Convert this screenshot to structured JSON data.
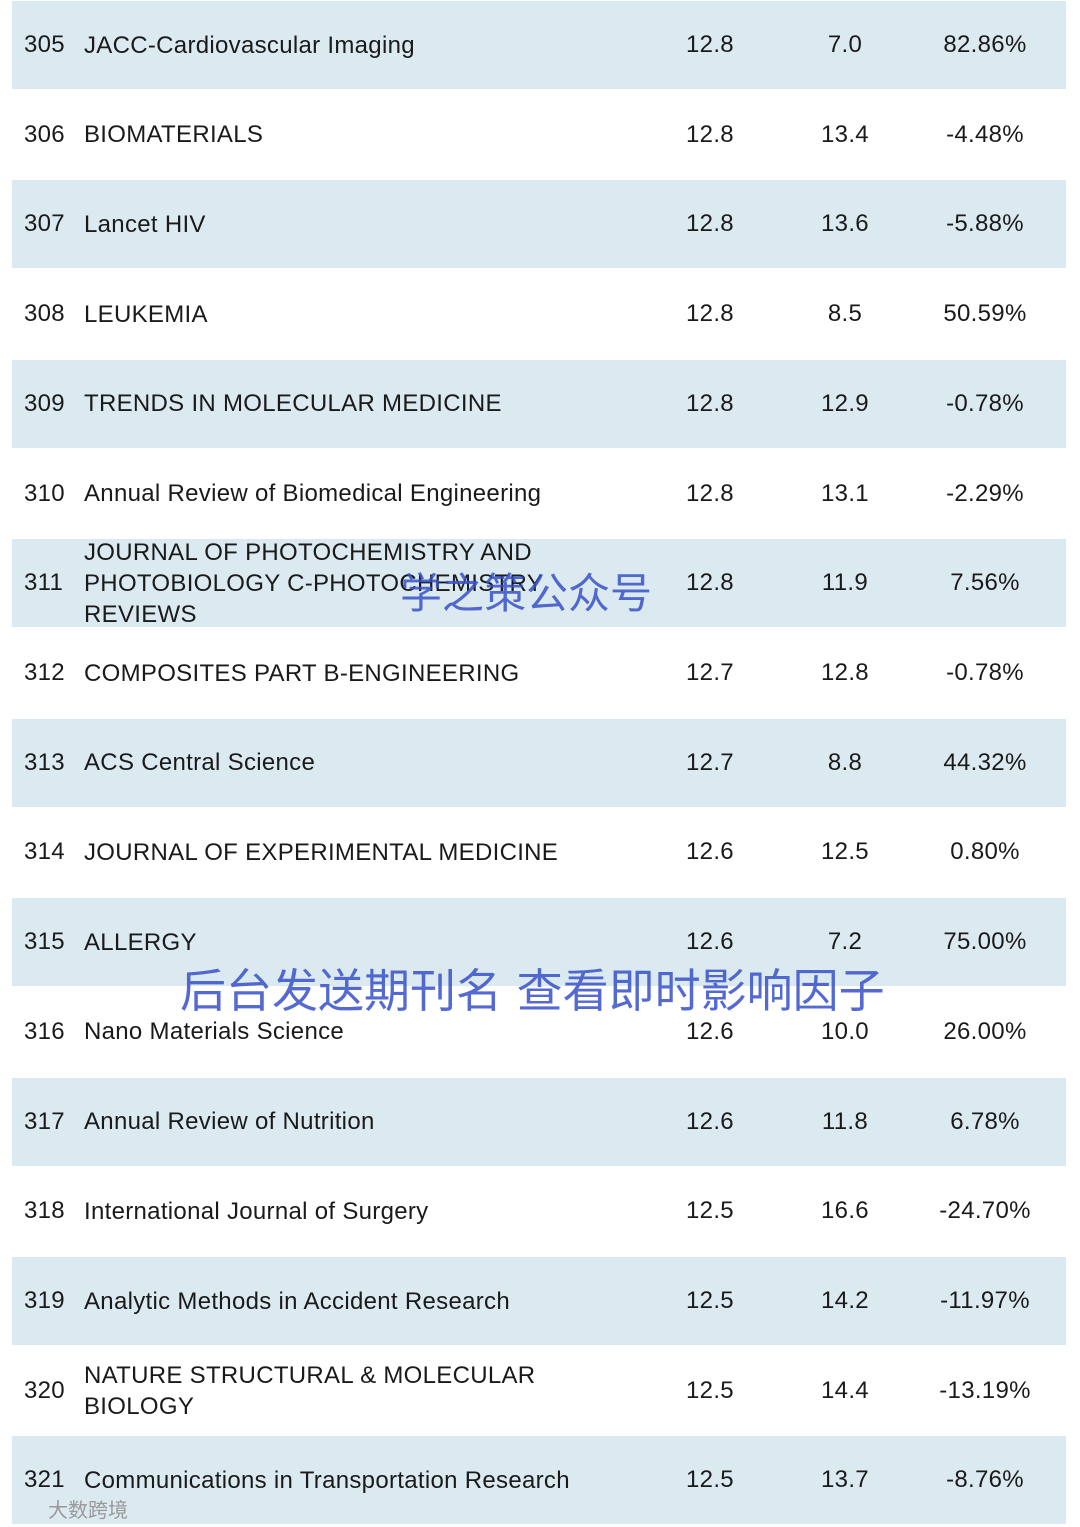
{
  "table": {
    "rows": [
      {
        "rank": "305",
        "name": [
          "JACC-Cardiovascular Imaging"
        ],
        "if": "12.8",
        "prev": "7.0",
        "change": "82.86%"
      },
      {
        "rank": "306",
        "name": [
          "BIOMATERIALS"
        ],
        "if": "12.8",
        "prev": "13.4",
        "change": "-4.48%"
      },
      {
        "rank": "307",
        "name": [
          "Lancet HIV"
        ],
        "if": "12.8",
        "prev": "13.6",
        "change": "-5.88%"
      },
      {
        "rank": "308",
        "name": [
          "LEUKEMIA"
        ],
        "if": "12.8",
        "prev": "8.5",
        "change": "50.59%"
      },
      {
        "rank": "309",
        "name": [
          "TRENDS IN MOLECULAR MEDICINE"
        ],
        "if": "12.8",
        "prev": "12.9",
        "change": "-0.78%"
      },
      {
        "rank": "310",
        "name": [
          "Annual Review of Biomedical Engineering"
        ],
        "if": "12.8",
        "prev": "13.1",
        "change": "-2.29%"
      },
      {
        "rank": "311",
        "name": [
          "JOURNAL OF PHOTOCHEMISTRY AND",
          "PHOTOBIOLOGY C-PHOTOCHEMISTRY",
          "REVIEWS"
        ],
        "if": "12.8",
        "prev": "11.9",
        "change": "7.56%"
      },
      {
        "rank": "312",
        "name": [
          "COMPOSITES PART B-ENGINEERING"
        ],
        "if": "12.7",
        "prev": "12.8",
        "change": "-0.78%"
      },
      {
        "rank": "313",
        "name": [
          "ACS Central Science"
        ],
        "if": "12.7",
        "prev": "8.8",
        "change": "44.32%"
      },
      {
        "rank": "314",
        "name": [
          "JOURNAL OF EXPERIMENTAL MEDICINE"
        ],
        "if": "12.6",
        "prev": "12.5",
        "change": "0.80%"
      },
      {
        "rank": "315",
        "name": [
          "ALLERGY"
        ],
        "if": "12.6",
        "prev": "7.2",
        "change": "75.00%"
      },
      {
        "rank": "316",
        "name": [
          "Nano Materials Science"
        ],
        "if": "12.6",
        "prev": "10.0",
        "change": "26.00%"
      },
      {
        "rank": "317",
        "name": [
          "Annual Review of Nutrition"
        ],
        "if": "12.6",
        "prev": "11.8",
        "change": "6.78%"
      },
      {
        "rank": "318",
        "name": [
          "International Journal of Surgery"
        ],
        "if": "12.5",
        "prev": "16.6",
        "change": "-24.70%"
      },
      {
        "rank": "319",
        "name": [
          "Analytic Methods in Accident Research"
        ],
        "if": "12.5",
        "prev": "14.2",
        "change": "-11.97%"
      },
      {
        "rank": "320",
        "name": [
          "NATURE STRUCTURAL & MOLECULAR",
          "BIOLOGY"
        ],
        "if": "12.5",
        "prev": "14.4",
        "change": "-13.19%"
      },
      {
        "rank": "321",
        "name": [
          "Communications in Transportation Research"
        ],
        "if": "12.5",
        "prev": "13.7",
        "change": "-8.76%"
      }
    ]
  },
  "watermarks": {
    "account": "学之策公众号",
    "notice": "后台发送期刊名 查看即时影响因子",
    "logo": "大数跨境"
  }
}
